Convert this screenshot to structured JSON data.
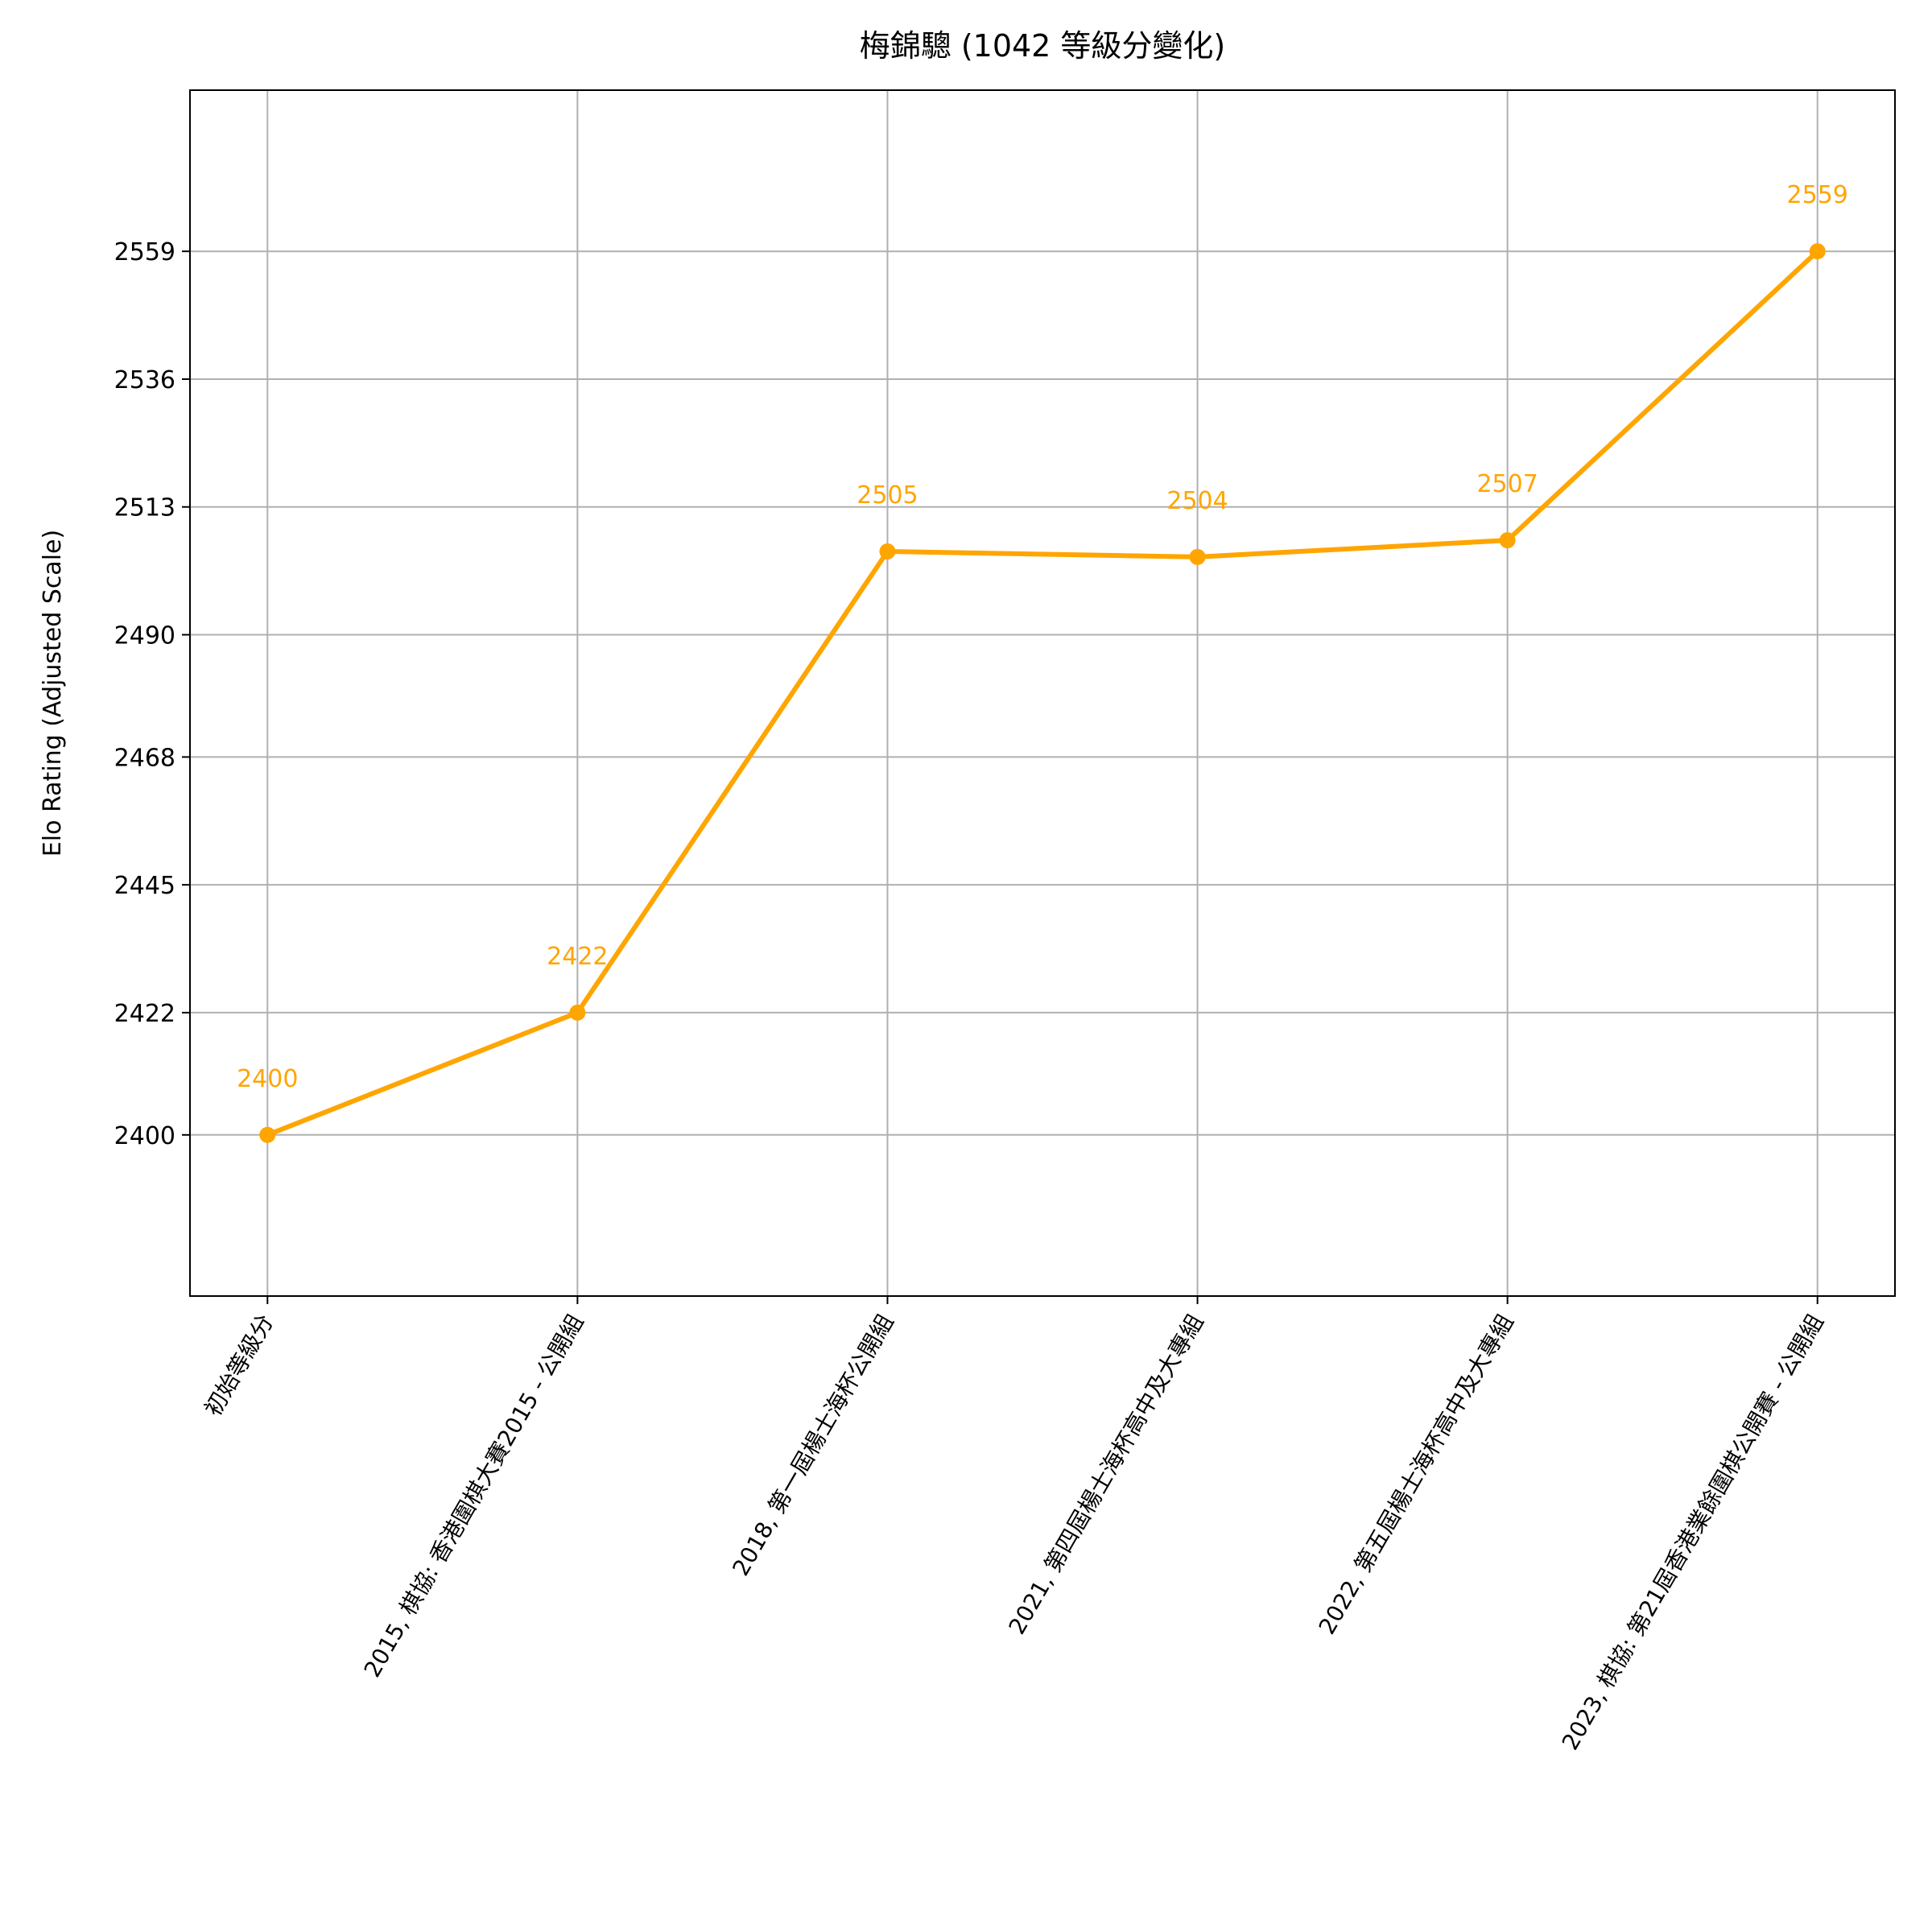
{
  "chart_data": {
    "type": "line",
    "title": "梅錦驄 (1042 等級分變化)",
    "ylabel": "Elo Rating (Adjusted Scale)",
    "categories": [
      "初始等級分",
      "2015, 棋協: 香港圍棋大賽2015 - 公開組",
      "2018, 第一屆楊士海杯公開組",
      "2021, 第四屆楊士海杯高中及大專組",
      "2022, 第五屆楊士海杯高中及大專組",
      "2023, 棋協: 第21屆香港業餘圍棋公開賽 - 公開組"
    ],
    "series": [
      {
        "name": "Elo",
        "color": "#ffa500",
        "values": [
          2400,
          2422,
          2505,
          2504,
          2507,
          2559
        ]
      }
    ],
    "ylim": [
      2371,
      2588
    ],
    "yticks": [
      2400,
      2422,
      2445,
      2468,
      2490,
      2513,
      2536,
      2559
    ],
    "grid": true
  }
}
